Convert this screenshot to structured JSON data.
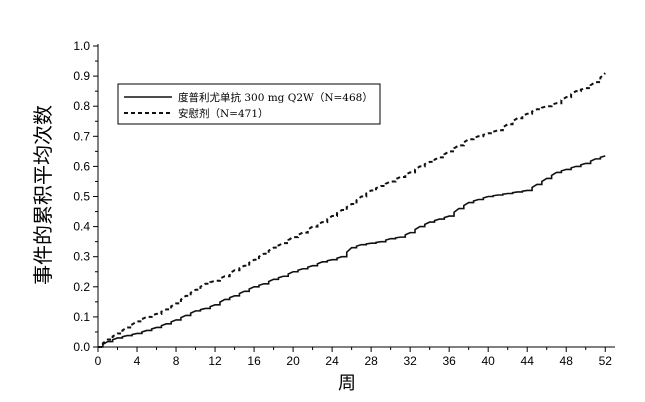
{
  "chart_data": {
    "type": "line",
    "title": "",
    "xlabel": "周",
    "ylabel": "事件的累积平均次数",
    "xlim": [
      0,
      53
    ],
    "ylim": [
      0,
      1.0
    ],
    "x_ticks": [
      0,
      4,
      8,
      12,
      16,
      20,
      24,
      28,
      32,
      36,
      40,
      44,
      48,
      52
    ],
    "y_ticks": [
      "0.0",
      "0.1",
      "0.2",
      "0.3",
      "0.4",
      "0.5",
      "0.6",
      "0.7",
      "0.8",
      "0.9",
      "1.0"
    ],
    "grid": false,
    "legend_position": "top-left",
    "series": [
      {
        "name": "度普利尤单抗 300 mg Q2W（N=468）",
        "line_style": "solid",
        "color": "#111111",
        "x": [
          0,
          1,
          2,
          3,
          4,
          5,
          6,
          7,
          8,
          9,
          10,
          11,
          12,
          13,
          14,
          15,
          16,
          17,
          18,
          19,
          20,
          21,
          22,
          23,
          24,
          25,
          26,
          27,
          28,
          29,
          30,
          31,
          32,
          33,
          34,
          35,
          36,
          37,
          38,
          39,
          40,
          41,
          42,
          43,
          44,
          45,
          46,
          47,
          48,
          49,
          50,
          51,
          52
        ],
        "y": [
          0.0,
          0.018,
          0.03,
          0.038,
          0.045,
          0.055,
          0.065,
          0.077,
          0.09,
          0.105,
          0.12,
          0.128,
          0.14,
          0.158,
          0.17,
          0.185,
          0.2,
          0.21,
          0.225,
          0.235,
          0.25,
          0.26,
          0.27,
          0.283,
          0.29,
          0.3,
          0.33,
          0.34,
          0.345,
          0.35,
          0.36,
          0.365,
          0.38,
          0.4,
          0.415,
          0.425,
          0.435,
          0.46,
          0.48,
          0.49,
          0.5,
          0.505,
          0.51,
          0.515,
          0.52,
          0.54,
          0.56,
          0.58,
          0.59,
          0.6,
          0.61,
          0.625,
          0.635
        ]
      },
      {
        "name": "安慰剂（N=471）",
        "line_style": "dashed",
        "color": "#111111",
        "x": [
          0,
          1,
          2,
          3,
          4,
          5,
          6,
          7,
          8,
          9,
          10,
          11,
          12,
          13,
          14,
          15,
          16,
          17,
          18,
          19,
          20,
          21,
          22,
          23,
          24,
          25,
          26,
          27,
          28,
          29,
          30,
          31,
          32,
          33,
          34,
          35,
          36,
          37,
          38,
          39,
          40,
          41,
          42,
          43,
          44,
          45,
          46,
          47,
          48,
          49,
          50,
          51,
          52
        ],
        "y": [
          0.0,
          0.025,
          0.045,
          0.065,
          0.085,
          0.1,
          0.11,
          0.125,
          0.145,
          0.17,
          0.19,
          0.21,
          0.22,
          0.235,
          0.255,
          0.27,
          0.29,
          0.31,
          0.33,
          0.345,
          0.365,
          0.38,
          0.4,
          0.415,
          0.435,
          0.455,
          0.475,
          0.5,
          0.52,
          0.535,
          0.55,
          0.565,
          0.58,
          0.6,
          0.615,
          0.63,
          0.65,
          0.67,
          0.69,
          0.7,
          0.71,
          0.72,
          0.74,
          0.76,
          0.775,
          0.79,
          0.8,
          0.81,
          0.83,
          0.85,
          0.86,
          0.88,
          0.91
        ]
      }
    ]
  }
}
